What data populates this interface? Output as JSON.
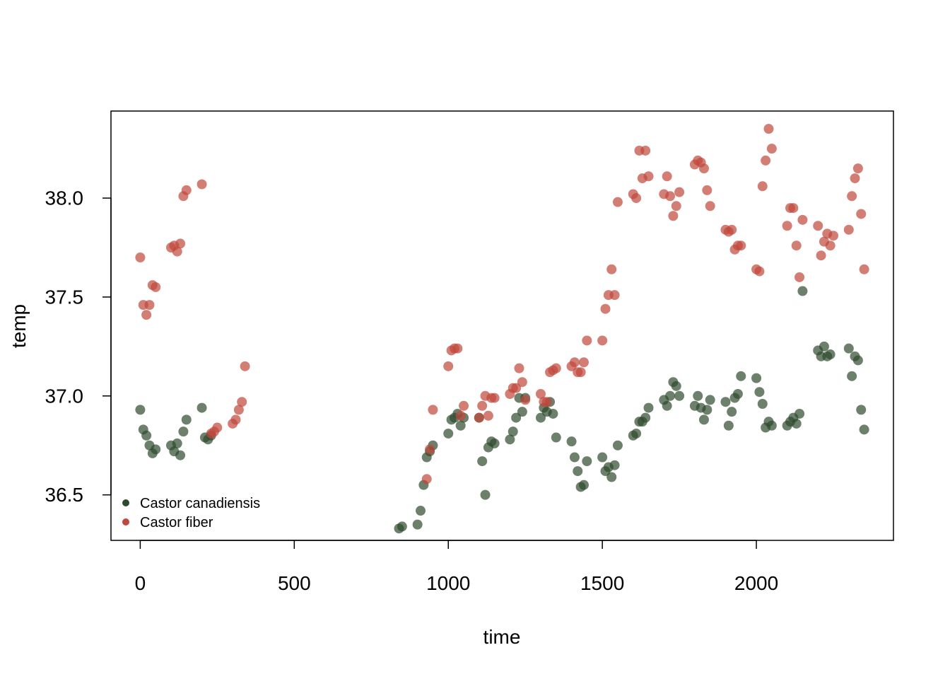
{
  "chart_data": {
    "type": "scatter",
    "xlabel": "time",
    "ylabel": "temp",
    "xlim": [
      -95,
      2445
    ],
    "ylim": [
      36.27,
      38.44
    ],
    "xticks": [
      0,
      500,
      1000,
      1500,
      2000
    ],
    "yticks": [
      36.5,
      37.0,
      37.5,
      38.0
    ],
    "ytick_labels": [
      "36.5",
      "37.0",
      "37.5",
      "38.0"
    ],
    "grid": false,
    "legend_position": "bottom-left",
    "series": [
      {
        "name": "Castor canadiensis",
        "color": "#2e4a2e",
        "points": [
          [
            0,
            36.93
          ],
          [
            10,
            36.83
          ],
          [
            20,
            36.8
          ],
          [
            30,
            36.75
          ],
          [
            40,
            36.71
          ],
          [
            50,
            36.73
          ],
          [
            100,
            36.75
          ],
          [
            110,
            36.72
          ],
          [
            120,
            36.76
          ],
          [
            130,
            36.7
          ],
          [
            140,
            36.82
          ],
          [
            150,
            36.88
          ],
          [
            200,
            36.94
          ],
          [
            210,
            36.79
          ],
          [
            220,
            36.78
          ],
          [
            230,
            36.8
          ],
          [
            840,
            36.33
          ],
          [
            850,
            36.34
          ],
          [
            900,
            36.35
          ],
          [
            910,
            36.42
          ],
          [
            920,
            36.55
          ],
          [
            930,
            36.69
          ],
          [
            940,
            36.72
          ],
          [
            950,
            36.75
          ],
          [
            1000,
            36.81
          ],
          [
            1010,
            36.88
          ],
          [
            1020,
            36.89
          ],
          [
            1030,
            36.91
          ],
          [
            1040,
            36.85
          ],
          [
            1050,
            36.89
          ],
          [
            1100,
            36.89
          ],
          [
            1110,
            36.67
          ],
          [
            1120,
            36.5
          ],
          [
            1130,
            36.74
          ],
          [
            1140,
            36.77
          ],
          [
            1150,
            36.76
          ],
          [
            1200,
            36.78
          ],
          [
            1210,
            36.82
          ],
          [
            1220,
            36.89
          ],
          [
            1230,
            36.99
          ],
          [
            1240,
            36.92
          ],
          [
            1250,
            36.99
          ],
          [
            1300,
            36.89
          ],
          [
            1310,
            36.94
          ],
          [
            1320,
            36.92
          ],
          [
            1330,
            36.97
          ],
          [
            1340,
            36.91
          ],
          [
            1350,
            36.79
          ],
          [
            1400,
            36.77
          ],
          [
            1410,
            36.69
          ],
          [
            1420,
            36.62
          ],
          [
            1430,
            36.54
          ],
          [
            1440,
            36.55
          ],
          [
            1450,
            36.67
          ],
          [
            1500,
            36.69
          ],
          [
            1510,
            36.62
          ],
          [
            1520,
            36.64
          ],
          [
            1530,
            36.59
          ],
          [
            1540,
            36.65
          ],
          [
            1550,
            36.75
          ],
          [
            1600,
            36.8
          ],
          [
            1610,
            36.81
          ],
          [
            1620,
            36.87
          ],
          [
            1630,
            36.87
          ],
          [
            1640,
            36.89
          ],
          [
            1650,
            36.94
          ],
          [
            1700,
            36.98
          ],
          [
            1710,
            36.95
          ],
          [
            1720,
            37.0
          ],
          [
            1730,
            37.07
          ],
          [
            1740,
            37.05
          ],
          [
            1750,
            37.0
          ],
          [
            1800,
            36.95
          ],
          [
            1810,
            37.0
          ],
          [
            1820,
            36.94
          ],
          [
            1830,
            36.88
          ],
          [
            1840,
            36.93
          ],
          [
            1850,
            36.98
          ],
          [
            1900,
            36.97
          ],
          [
            1910,
            36.85
          ],
          [
            1920,
            36.92
          ],
          [
            1930,
            36.99
          ],
          [
            1940,
            37.01
          ],
          [
            1950,
            37.1
          ],
          [
            2000,
            37.09
          ],
          [
            2010,
            37.02
          ],
          [
            2020,
            36.96
          ],
          [
            2030,
            36.84
          ],
          [
            2040,
            36.87
          ],
          [
            2050,
            36.85
          ],
          [
            2100,
            36.85
          ],
          [
            2110,
            36.87
          ],
          [
            2120,
            36.89
          ],
          [
            2130,
            36.86
          ],
          [
            2140,
            36.91
          ],
          [
            2150,
            37.53
          ],
          [
            2200,
            37.23
          ],
          [
            2210,
            37.2
          ],
          [
            2220,
            37.25
          ],
          [
            2230,
            37.2
          ],
          [
            2240,
            37.21
          ],
          [
            2300,
            37.24
          ],
          [
            2310,
            37.1
          ],
          [
            2320,
            37.2
          ],
          [
            2330,
            37.18
          ],
          [
            2340,
            36.93
          ],
          [
            2350,
            36.83
          ]
        ]
      },
      {
        "name": "Castor fiber",
        "color": "#c0473a",
        "points": [
          [
            0,
            37.7
          ],
          [
            10,
            37.46
          ],
          [
            20,
            37.41
          ],
          [
            30,
            37.46
          ],
          [
            40,
            37.56
          ],
          [
            50,
            37.55
          ],
          [
            100,
            37.75
          ],
          [
            110,
            37.76
          ],
          [
            120,
            37.73
          ],
          [
            130,
            37.77
          ],
          [
            140,
            38.01
          ],
          [
            150,
            38.04
          ],
          [
            200,
            38.07
          ],
          [
            230,
            36.81
          ],
          [
            240,
            36.82
          ],
          [
            250,
            36.84
          ],
          [
            300,
            36.86
          ],
          [
            310,
            36.88
          ],
          [
            320,
            36.93
          ],
          [
            330,
            36.97
          ],
          [
            340,
            37.15
          ],
          [
            930,
            36.58
          ],
          [
            940,
            36.73
          ],
          [
            950,
            36.93
          ],
          [
            1000,
            37.15
          ],
          [
            1010,
            37.23
          ],
          [
            1020,
            37.24
          ],
          [
            1030,
            37.24
          ],
          [
            1040,
            36.9
          ],
          [
            1050,
            36.95
          ],
          [
            1100,
            36.89
          ],
          [
            1110,
            36.95
          ],
          [
            1120,
            37.0
          ],
          [
            1130,
            36.9
          ],
          [
            1140,
            36.99
          ],
          [
            1150,
            36.99
          ],
          [
            1200,
            37.01
          ],
          [
            1210,
            37.04
          ],
          [
            1220,
            37.04
          ],
          [
            1230,
            37.14
          ],
          [
            1240,
            37.07
          ],
          [
            1250,
            36.98
          ],
          [
            1300,
            37.01
          ],
          [
            1310,
            36.97
          ],
          [
            1320,
            36.97
          ],
          [
            1330,
            37.12
          ],
          [
            1340,
            37.13
          ],
          [
            1350,
            37.14
          ],
          [
            1400,
            37.15
          ],
          [
            1410,
            37.17
          ],
          [
            1420,
            37.12
          ],
          [
            1430,
            37.12
          ],
          [
            1440,
            37.17
          ],
          [
            1450,
            37.28
          ],
          [
            1500,
            37.28
          ],
          [
            1510,
            37.44
          ],
          [
            1520,
            37.51
          ],
          [
            1530,
            37.64
          ],
          [
            1540,
            37.51
          ],
          [
            1550,
            37.98
          ],
          [
            1600,
            38.02
          ],
          [
            1610,
            38.0
          ],
          [
            1620,
            38.24
          ],
          [
            1630,
            38.1
          ],
          [
            1640,
            38.24
          ],
          [
            1650,
            38.11
          ],
          [
            1700,
            38.02
          ],
          [
            1710,
            38.11
          ],
          [
            1720,
            38.01
          ],
          [
            1730,
            37.91
          ],
          [
            1740,
            37.96
          ],
          [
            1750,
            38.03
          ],
          [
            1800,
            38.17
          ],
          [
            1810,
            38.19
          ],
          [
            1820,
            38.18
          ],
          [
            1830,
            38.15
          ],
          [
            1840,
            38.04
          ],
          [
            1850,
            37.96
          ],
          [
            1900,
            37.84
          ],
          [
            1910,
            37.83
          ],
          [
            1920,
            37.84
          ],
          [
            1930,
            37.74
          ],
          [
            1940,
            37.76
          ],
          [
            1950,
            37.76
          ],
          [
            2000,
            37.64
          ],
          [
            2010,
            37.63
          ],
          [
            2020,
            38.06
          ],
          [
            2030,
            38.19
          ],
          [
            2040,
            38.35
          ],
          [
            2050,
            38.25
          ],
          [
            2100,
            37.86
          ],
          [
            2110,
            37.95
          ],
          [
            2120,
            37.95
          ],
          [
            2130,
            37.76
          ],
          [
            2140,
            37.6
          ],
          [
            2150,
            37.89
          ],
          [
            2200,
            37.86
          ],
          [
            2210,
            37.71
          ],
          [
            2220,
            37.78
          ],
          [
            2230,
            37.82
          ],
          [
            2240,
            37.76
          ],
          [
            2250,
            37.81
          ],
          [
            2300,
            37.84
          ],
          [
            2310,
            38.01
          ],
          [
            2320,
            38.1
          ],
          [
            2330,
            38.15
          ],
          [
            2340,
            37.92
          ],
          [
            2350,
            37.64
          ]
        ]
      }
    ]
  }
}
